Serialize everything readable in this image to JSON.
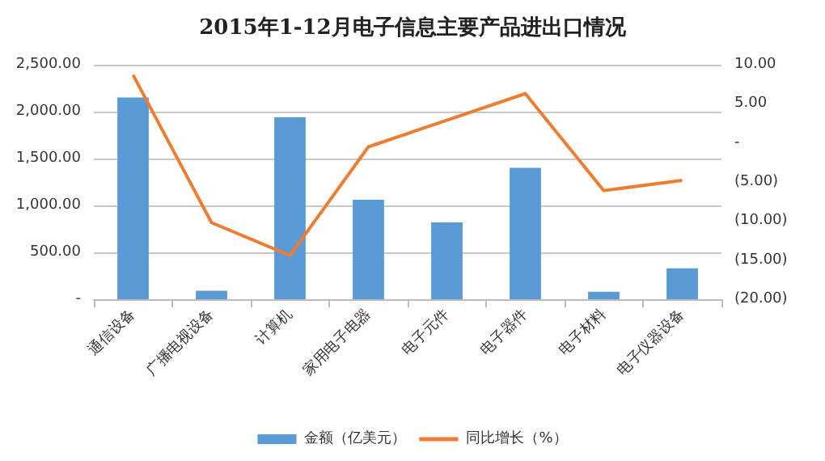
{
  "chart_data": {
    "type": "bar",
    "title": "2015年1-12月电子信息主要产品进出口情况",
    "categories": [
      "通信设备",
      "广播电视设备",
      "计算机",
      "家用电子电器",
      "电子元件",
      "电子器件",
      "电子材料",
      "电子仪器设备"
    ],
    "series": [
      {
        "name": "金额（亿美元）",
        "color": "#5b9bd5",
        "values": [
          2150,
          90,
          1940,
          1060,
          820,
          1400,
          80,
          330
        ]
      },
      {
        "name": "同比增长（%）",
        "type": "line",
        "axis": "y2",
        "color": "#ed7d31",
        "values": [
          8.7,
          -10.2,
          -14.4,
          -0.5,
          2.9,
          6.3,
          -6.1,
          -4.8
        ]
      }
    ],
    "ylim": [
      0,
      2500
    ],
    "yticks": [
      {
        "value": 0,
        "label": "-"
      },
      {
        "value": 500,
        "label": "500.00"
      },
      {
        "value": 1000,
        "label": "1,000.00"
      },
      {
        "value": 1500,
        "label": "1,500.00"
      },
      {
        "value": 2000,
        "label": "2,000.00"
      },
      {
        "value": 2500,
        "label": "2,500.00"
      }
    ],
    "y2lim": [
      -20,
      10
    ],
    "y2ticks": [
      {
        "value": -20,
        "label": "(20.00)"
      },
      {
        "value": -15,
        "label": "(15.00)"
      },
      {
        "value": -10,
        "label": "(10.00)"
      },
      {
        "value": -5,
        "label": "(5.00)"
      },
      {
        "value": 0,
        "label": "-"
      },
      {
        "value": 5,
        "label": "5.00"
      },
      {
        "value": 10,
        "label": "10.00"
      }
    ],
    "grid": "y",
    "legend": "bottom",
    "marker": "none",
    "line_style": "solid"
  }
}
